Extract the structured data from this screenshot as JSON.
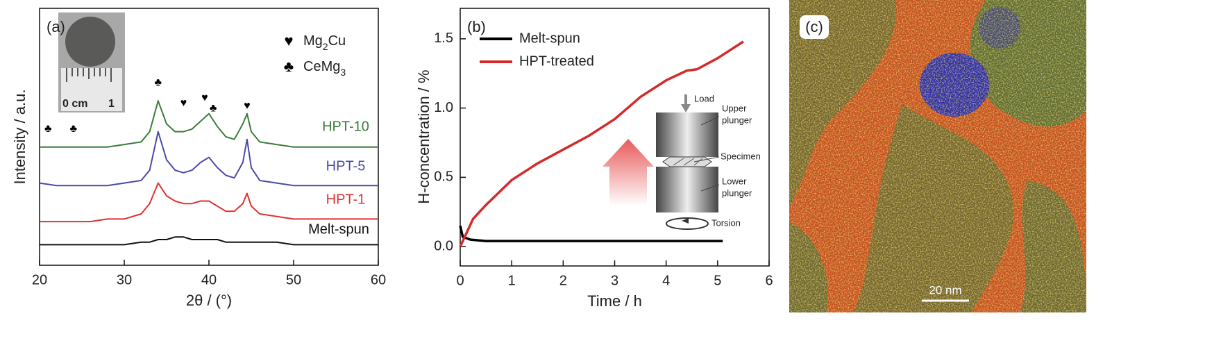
{
  "chart_data": [
    {
      "type": "line",
      "label": "(a)",
      "xlabel": "2θ / (°)",
      "ylabel": "Intensity / a.u.",
      "xlim": [
        20,
        60
      ],
      "xticks": [
        20,
        30,
        40,
        50,
        60
      ],
      "ylim": [
        0,
        100
      ],
      "x": [
        20,
        22,
        24,
        26,
        28,
        30,
        32,
        33,
        34,
        35,
        36,
        37,
        38,
        39,
        40,
        41,
        42,
        43,
        44,
        44.5,
        45,
        46,
        48,
        50,
        52,
        54,
        56,
        58,
        60
      ],
      "series": [
        {
          "name": "HPT-10",
          "color": "#3a7d3a",
          "values": [
            46,
            46,
            46,
            46,
            46,
            47,
            48,
            52,
            64,
            55,
            52,
            52,
            53,
            56,
            59,
            54,
            50,
            49,
            55,
            59,
            52,
            48,
            47,
            46,
            46,
            46,
            46,
            46,
            46
          ]
        },
        {
          "name": "HPT-5",
          "color": "#4a4aa8",
          "values": [
            32,
            31,
            31,
            31,
            31,
            32,
            33,
            37,
            52,
            41,
            37,
            36,
            37,
            40,
            42,
            38,
            35,
            34,
            40,
            49,
            38,
            33,
            32,
            31,
            31,
            31,
            31,
            31,
            31
          ]
        },
        {
          "name": "HPT-1",
          "color": "#e03030",
          "values": [
            17,
            17,
            17,
            17,
            18,
            18,
            20,
            24,
            32,
            27,
            25,
            24,
            24,
            25,
            25,
            23,
            21,
            21,
            24,
            28,
            23,
            20,
            19,
            18,
            18,
            18,
            18,
            18,
            18
          ]
        },
        {
          "name": "Melt-spun",
          "color": "#111111",
          "values": [
            8,
            8,
            8,
            8,
            8,
            8,
            9,
            9,
            10,
            10,
            11,
            11,
            10,
            10,
            10,
            10,
            9,
            9,
            9,
            9,
            9,
            9,
            9,
            8,
            8,
            8,
            8,
            8,
            8
          ]
        }
      ],
      "phase_legend": [
        {
          "symbol": "♥",
          "label": "Mg2Cu"
        },
        {
          "symbol": "♣",
          "label": "CeMg3"
        }
      ],
      "peak_markers": [
        {
          "symbol": "♣",
          "x": 21,
          "y": 53
        },
        {
          "symbol": "♣",
          "x": 24,
          "y": 53
        },
        {
          "symbol": "♣",
          "x": 34,
          "y": 71
        },
        {
          "symbol": "♥",
          "x": 37,
          "y": 63
        },
        {
          "symbol": "♥",
          "x": 39.5,
          "y": 65
        },
        {
          "symbol": "♣",
          "x": 40.5,
          "y": 61
        },
        {
          "symbol": "♥",
          "x": 44.5,
          "y": 62
        }
      ],
      "inset_labels": [
        "0 cm",
        "1"
      ]
    },
    {
      "type": "line",
      "label": "(b)",
      "xlabel": "Time / h",
      "ylabel": "H-concentration / %",
      "xlim": [
        0,
        6
      ],
      "xticks": [
        0,
        1,
        2,
        3,
        4,
        5,
        6
      ],
      "ylim": [
        -0.14,
        1.72
      ],
      "yticks": [
        {
          "value": 0,
          "label": "0.0"
        },
        0.5,
        {
          "value": 1,
          "label": "1.0"
        },
        1.5
      ],
      "legend": "upper left",
      "series": [
        {
          "name": "Melt-spun",
          "color": "#000000",
          "x": [
            0,
            0.05,
            0.2,
            0.5,
            1,
            2,
            3,
            4,
            5.1
          ],
          "values": [
            0.15,
            0.07,
            0.05,
            0.04,
            0.04,
            0.04,
            0.04,
            0.04,
            0.04
          ]
        },
        {
          "name": "HPT-treated",
          "color": "#d42a2a",
          "x": [
            0,
            0.25,
            0.5,
            1,
            1.5,
            2,
            2.5,
            3,
            3.5,
            4,
            4.4,
            4.6,
            5,
            5.5
          ],
          "values": [
            0,
            0.2,
            0.3,
            0.48,
            0.6,
            0.7,
            0.8,
            0.92,
            1.08,
            1.2,
            1.27,
            1.28,
            1.36,
            1.48
          ]
        }
      ],
      "inset_labels": [
        "Load",
        "Upper",
        "plunger",
        "Specimen",
        "Lower",
        "plunger",
        "Torsion"
      ]
    }
  ],
  "image": {
    "label": "(c)",
    "scale_bar": "20 nm"
  }
}
